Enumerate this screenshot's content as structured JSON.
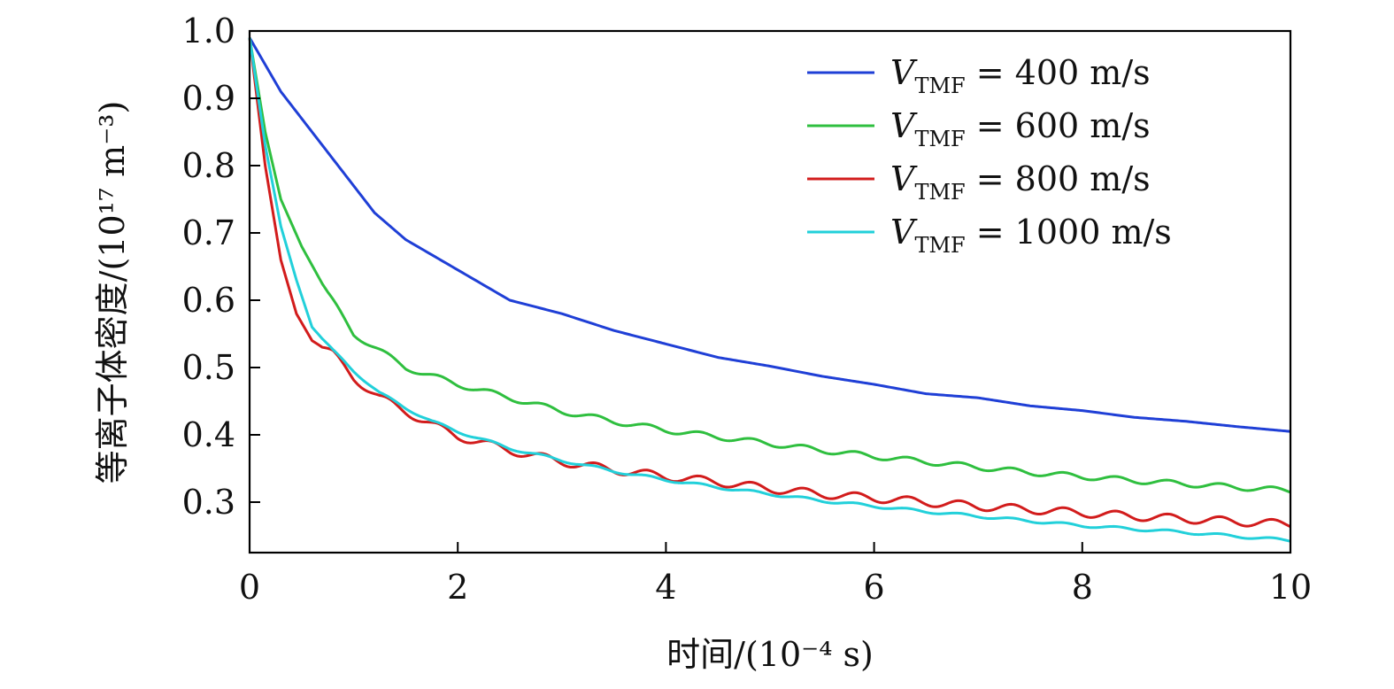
{
  "chart_data": {
    "type": "line",
    "title": "",
    "xlabel": "时间/(10⁻⁴ s)",
    "ylabel": "等离子体密度/(10¹⁷ m⁻³)",
    "xlim": [
      0,
      10
    ],
    "ylim": [
      0.225,
      1.0
    ],
    "xticks": [
      0,
      2,
      4,
      6,
      8,
      10
    ],
    "xtick_labels": [
      "0",
      "2",
      "4",
      "6",
      "8",
      "10"
    ],
    "yticks": [
      0.3,
      0.4,
      0.5,
      0.6,
      0.7,
      0.8,
      0.9,
      1.0
    ],
    "ytick_labels": [
      "0.3",
      "0.4",
      "0.5",
      "0.6",
      "0.7",
      "0.8",
      "0.9",
      "1.0"
    ],
    "grid": false,
    "legend_position": "top-right",
    "series": [
      {
        "name": "V_TMF = 400 m/s",
        "label_main": "V",
        "label_sub": "TMF",
        "label_rest": " = 400 m/s",
        "color": "#1f3fd6",
        "x": [
          0,
          0.3,
          0.6,
          0.9,
          1.2,
          1.5,
          2.0,
          2.5,
          3.0,
          3.5,
          4.0,
          4.5,
          5.0,
          5.5,
          6.0,
          6.5,
          7.0,
          7.5,
          8.0,
          8.5,
          9.0,
          9.5,
          10.0
        ],
        "y": [
          0.99,
          0.91,
          0.85,
          0.79,
          0.73,
          0.69,
          0.645,
          0.6,
          0.58,
          0.555,
          0.535,
          0.515,
          0.502,
          0.487,
          0.475,
          0.461,
          0.455,
          0.443,
          0.436,
          0.426,
          0.42,
          0.412,
          0.405
        ],
        "ripple_amp": 0.0,
        "ripple_period": 0.5
      },
      {
        "name": "V_TMF = 600 m/s",
        "label_main": "V",
        "label_sub": "TMF",
        "label_rest": " = 600 m/s",
        "color": "#2fbf3f",
        "x": [
          0,
          0.15,
          0.3,
          0.5,
          0.75,
          1.0,
          1.25,
          1.5,
          2.0,
          2.5,
          3.0,
          3.5,
          4.0,
          4.5,
          5.0,
          5.5,
          6.0,
          6.5,
          7.0,
          7.5,
          8.0,
          8.5,
          9.0,
          9.5,
          10.0
        ],
        "y": [
          0.99,
          0.85,
          0.75,
          0.68,
          0.61,
          0.55,
          0.525,
          0.5,
          0.475,
          0.455,
          0.435,
          0.42,
          0.407,
          0.397,
          0.387,
          0.377,
          0.368,
          0.36,
          0.352,
          0.344,
          0.338,
          0.332,
          0.327,
          0.322,
          0.317
        ],
        "ripple_amp": 0.004,
        "ripple_period": 0.5
      },
      {
        "name": "V_TMF = 800 m/s",
        "label_main": "V",
        "label_sub": "TMF",
        "label_rest": " = 800 m/s",
        "color": "#d21c1c",
        "x": [
          0,
          0.15,
          0.3,
          0.45,
          0.6,
          0.8,
          1.0,
          1.25,
          1.5,
          1.75,
          2.0,
          2.5,
          3.0,
          3.5,
          4.0,
          4.5,
          5.0,
          5.5,
          6.0,
          6.5,
          7.0,
          7.5,
          8.0,
          8.5,
          9.0,
          9.5,
          10.0
        ],
        "y": [
          0.99,
          0.8,
          0.66,
          0.58,
          0.54,
          0.52,
          0.485,
          0.455,
          0.435,
          0.415,
          0.398,
          0.377,
          0.36,
          0.348,
          0.338,
          0.33,
          0.32,
          0.312,
          0.306,
          0.3,
          0.294,
          0.289,
          0.284,
          0.279,
          0.275,
          0.271,
          0.267
        ],
        "ripple_amp": 0.006,
        "ripple_period": 0.5
      },
      {
        "name": "V_TMF = 1000 m/s",
        "label_main": "V",
        "label_sub": "TMF",
        "label_rest": " = 1000 m/s",
        "color": "#22d0da",
        "x": [
          0,
          0.15,
          0.3,
          0.45,
          0.6,
          0.8,
          1.0,
          1.25,
          1.5,
          1.75,
          2.0,
          2.5,
          3.0,
          3.5,
          4.0,
          4.5,
          5.0,
          5.5,
          6.0,
          6.5,
          7.0,
          7.5,
          8.0,
          8.5,
          9.0,
          9.5,
          10.0
        ],
        "y": [
          0.99,
          0.83,
          0.71,
          0.63,
          0.56,
          0.525,
          0.495,
          0.462,
          0.44,
          0.42,
          0.405,
          0.38,
          0.362,
          0.346,
          0.333,
          0.322,
          0.312,
          0.302,
          0.294,
          0.286,
          0.279,
          0.272,
          0.265,
          0.26,
          0.255,
          0.249,
          0.243
        ],
        "ripple_amp": 0.002,
        "ripple_period": 0.5
      }
    ]
  }
}
